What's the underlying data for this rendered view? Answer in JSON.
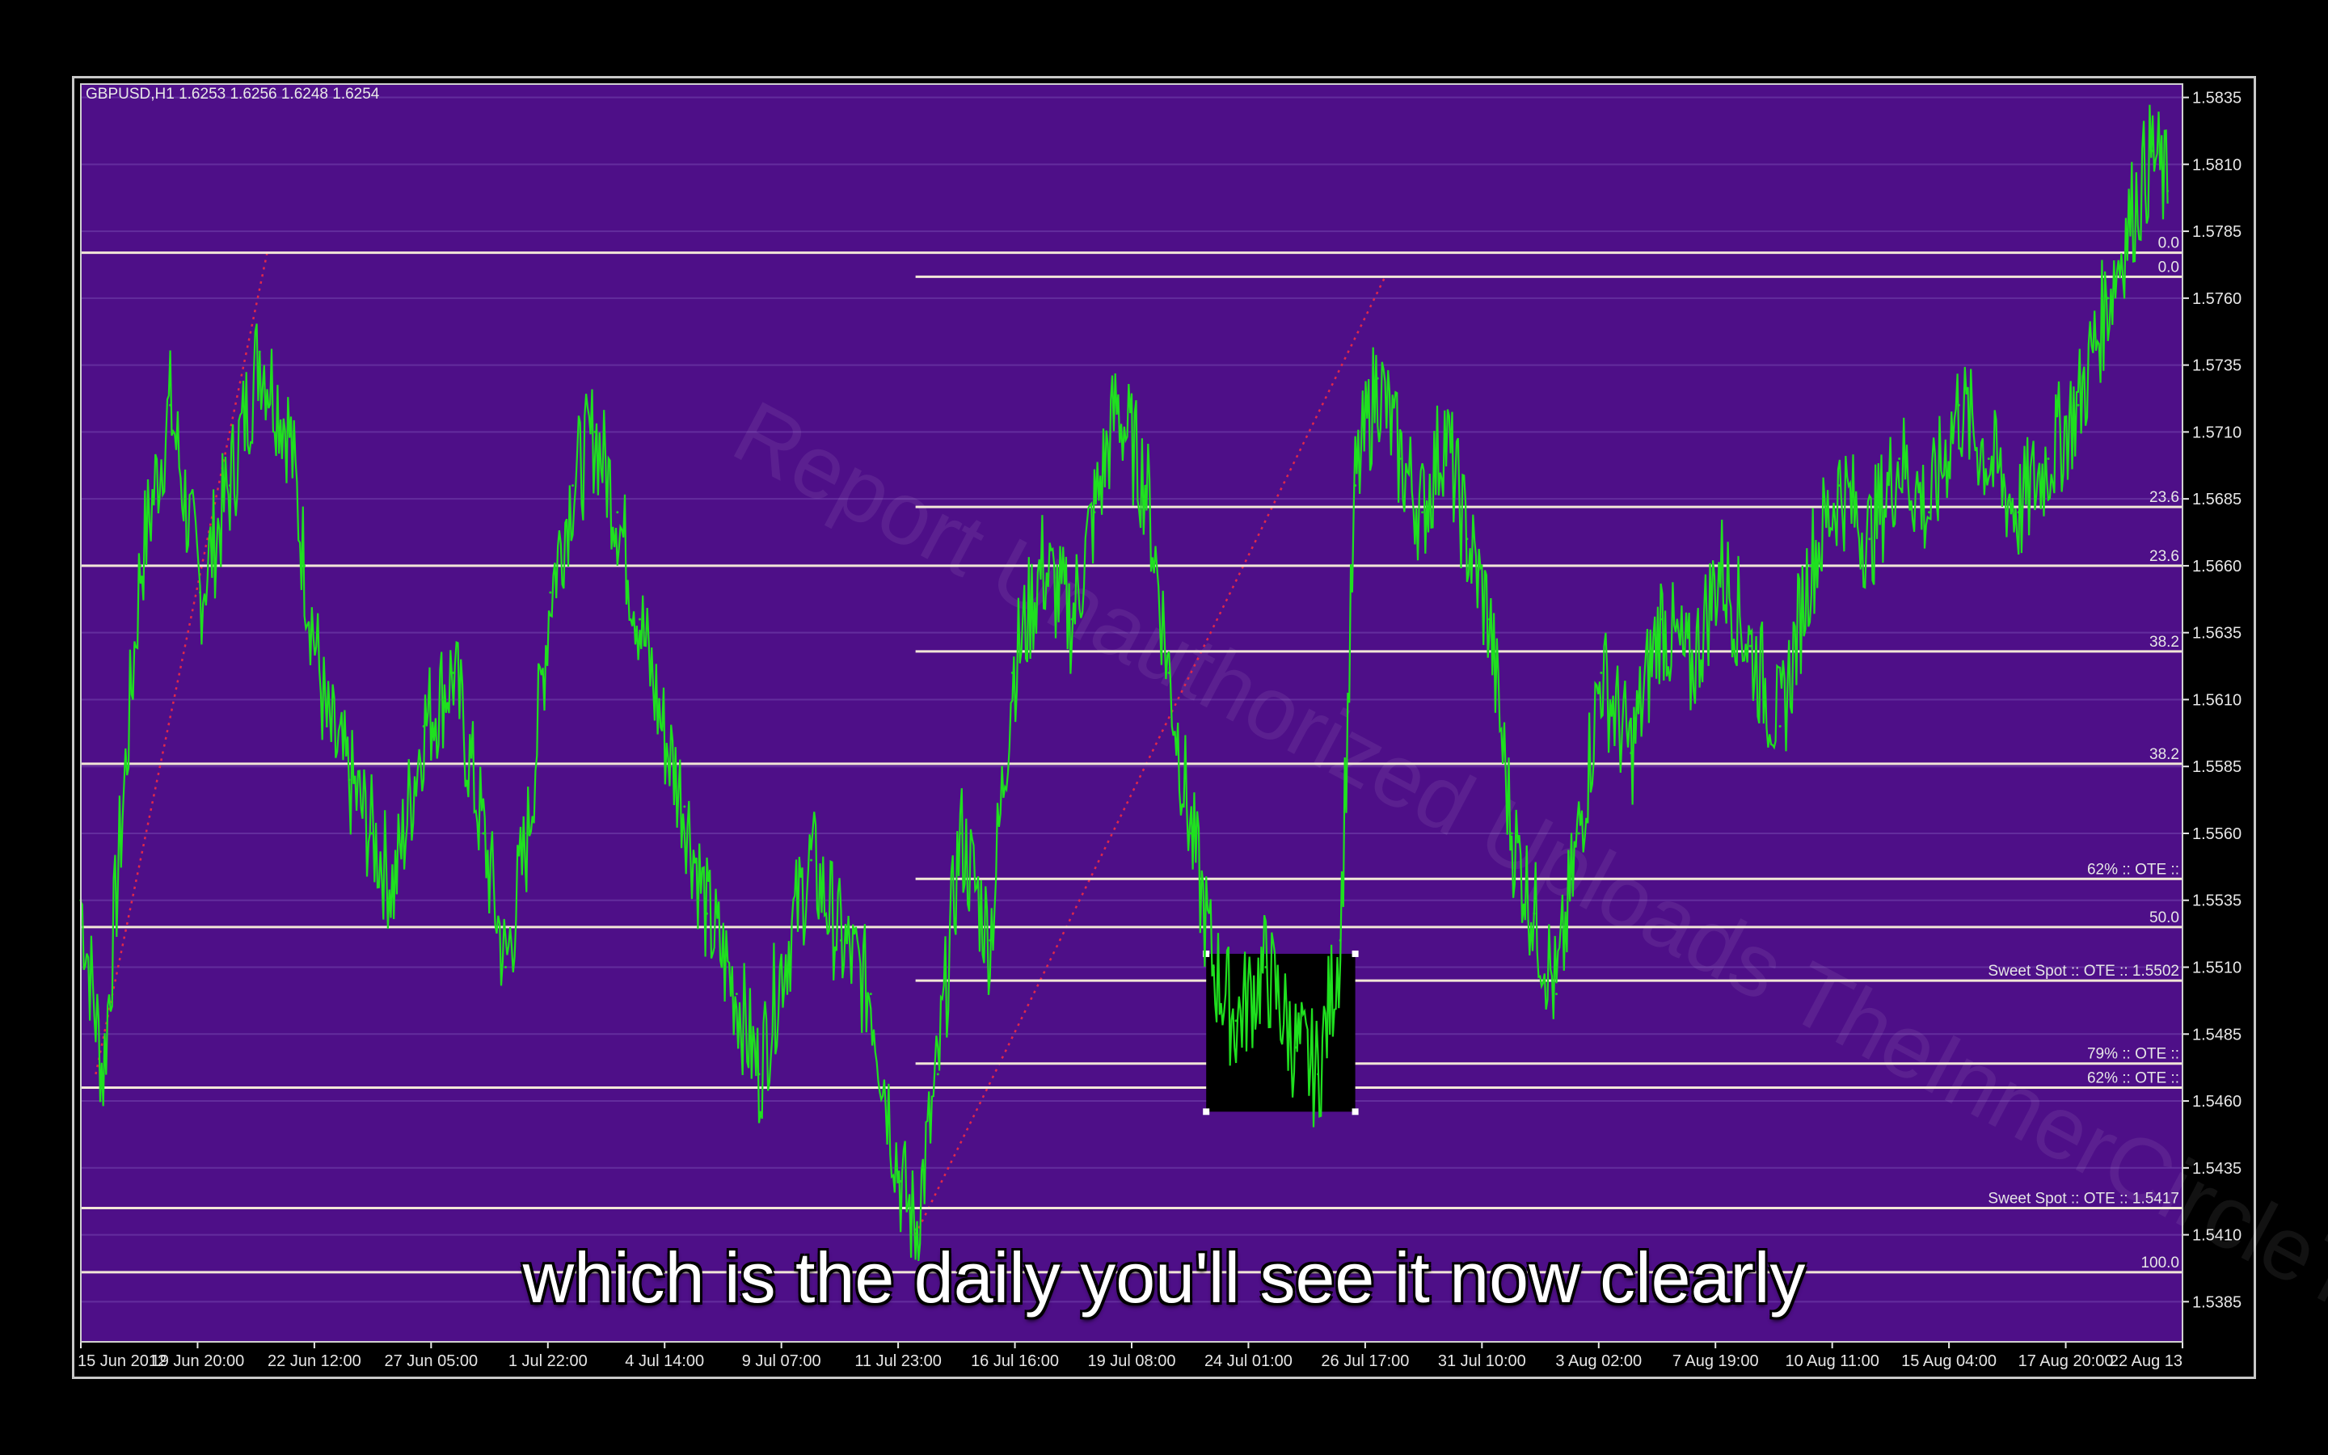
{
  "symbol_header": "GBPUSD,H1  1.6253 1.6256 1.6248 1.6254",
  "watermark": "Report Unauthorized Uploads TheInnerCircleTrader.com",
  "subtitle": "which is the daily you'll see it now clearly",
  "colors": {
    "background": "#4e0f88",
    "grid": "#6d3aa6",
    "price": "#1fe01f",
    "level_line": "#f2e6d8",
    "text": "#e6e6e6",
    "dotted_trend": "#e0284a",
    "box": "#000000"
  },
  "chart_data": {
    "type": "line",
    "title": "GBPUSD,H1  1.6253 1.6256 1.6248 1.6254",
    "xlabel": "",
    "ylabel": "",
    "ylim": [
      1.537,
      1.584
    ],
    "y_ticks": [
      "1.5835",
      "1.5810",
      "1.5785",
      "1.5760",
      "1.5735",
      "1.5710",
      "1.5685",
      "1.5660",
      "1.5635",
      "1.5610",
      "1.5585",
      "1.5560",
      "1.5535",
      "1.5510",
      "1.5485",
      "1.5460",
      "1.5435",
      "1.5410",
      "1.5385"
    ],
    "x_ticks": [
      "15 Jun 2012",
      "19 Jun 20:00",
      "22 Jun 12:00",
      "27 Jun 05:00",
      "1 Jul 22:00",
      "4 Jul 14:00",
      "9 Jul 07:00",
      "11 Jul 23:00",
      "16 Jul 16:00",
      "19 Jul 08:00",
      "24 Jul 01:00",
      "26 Jul 17:00",
      "31 Jul 10:00",
      "3 Aug 02:00",
      "7 Aug 19:00",
      "10 Aug 11:00",
      "15 Aug 04:00",
      "17 Aug 20:00",
      "22 Aug 13"
    ],
    "series": [
      {
        "values": [
          {
            "x": 0.0,
            "y": 1.5535
          },
          {
            "x": 0.3,
            "y": 1.547
          },
          {
            "x": 0.8,
            "y": 1.566
          },
          {
            "x": 1.2,
            "y": 1.572
          },
          {
            "x": 1.6,
            "y": 1.565
          },
          {
            "x": 2.0,
            "y": 1.569
          },
          {
            "x": 2.4,
            "y": 1.574
          },
          {
            "x": 2.8,
            "y": 1.571
          },
          {
            "x": 3.0,
            "y": 1.566
          },
          {
            "x": 3.3,
            "y": 1.56
          },
          {
            "x": 3.6,
            "y": 1.558
          },
          {
            "x": 3.9,
            "y": 1.556
          },
          {
            "x": 4.2,
            "y": 1.554
          },
          {
            "x": 4.6,
            "y": 1.56
          },
          {
            "x": 5.0,
            "y": 1.562
          },
          {
            "x": 5.4,
            "y": 1.556
          },
          {
            "x": 5.7,
            "y": 1.551
          },
          {
            "x": 6.0,
            "y": 1.556
          },
          {
            "x": 6.3,
            "y": 1.565
          },
          {
            "x": 6.6,
            "y": 1.569
          },
          {
            "x": 6.9,
            "y": 1.571
          },
          {
            "x": 7.2,
            "y": 1.568
          },
          {
            "x": 7.5,
            "y": 1.564
          },
          {
            "x": 7.8,
            "y": 1.56
          },
          {
            "x": 8.1,
            "y": 1.557
          },
          {
            "x": 8.4,
            "y": 1.553
          },
          {
            "x": 8.8,
            "y": 1.55
          },
          {
            "x": 9.1,
            "y": 1.547
          },
          {
            "x": 9.4,
            "y": 1.551
          },
          {
            "x": 9.8,
            "y": 1.555
          },
          {
            "x": 10.2,
            "y": 1.552
          },
          {
            "x": 10.6,
            "y": 1.55
          },
          {
            "x": 11.0,
            "y": 1.543
          },
          {
            "x": 11.2,
            "y": 1.5412
          },
          {
            "x": 11.5,
            "y": 1.547
          },
          {
            "x": 11.8,
            "y": 1.556
          },
          {
            "x": 12.2,
            "y": 1.552
          },
          {
            "x": 12.5,
            "y": 1.562
          },
          {
            "x": 12.9,
            "y": 1.566
          },
          {
            "x": 13.3,
            "y": 1.564
          },
          {
            "x": 13.6,
            "y": 1.568
          },
          {
            "x": 13.9,
            "y": 1.572
          },
          {
            "x": 14.3,
            "y": 1.569
          },
          {
            "x": 14.6,
            "y": 1.562
          },
          {
            "x": 14.9,
            "y": 1.556
          },
          {
            "x": 15.2,
            "y": 1.551
          },
          {
            "x": 15.5,
            "y": 1.549
          },
          {
            "x": 15.9,
            "y": 1.551
          },
          {
            "x": 16.3,
            "y": 1.548
          },
          {
            "x": 16.6,
            "y": 1.547
          },
          {
            "x": 16.9,
            "y": 1.552
          },
          {
            "x": 17.1,
            "y": 1.569
          },
          {
            "x": 17.4,
            "y": 1.573
          },
          {
            "x": 17.7,
            "y": 1.57
          },
          {
            "x": 18.0,
            "y": 1.568
          },
          {
            "x": 18.3,
            "y": 1.571
          },
          {
            "x": 18.6,
            "y": 1.567
          },
          {
            "x": 18.9,
            "y": 1.564
          },
          {
            "x": 19.2,
            "y": 1.556
          },
          {
            "x": 19.5,
            "y": 1.553
          },
          {
            "x": 19.8,
            "y": 1.55
          },
          {
            "x": 20.1,
            "y": 1.556
          },
          {
            "x": 20.4,
            "y": 1.562
          },
          {
            "x": 20.8,
            "y": 1.559
          },
          {
            "x": 21.2,
            "y": 1.564
          },
          {
            "x": 21.6,
            "y": 1.562
          },
          {
            "x": 22.0,
            "y": 1.566
          },
          {
            "x": 22.4,
            "y": 1.563
          },
          {
            "x": 22.8,
            "y": 1.56
          },
          {
            "x": 23.2,
            "y": 1.566
          },
          {
            "x": 23.6,
            "y": 1.569
          },
          {
            "x": 24.0,
            "y": 1.567
          },
          {
            "x": 24.4,
            "y": 1.57
          },
          {
            "x": 24.8,
            "y": 1.568
          },
          {
            "x": 25.2,
            "y": 1.572
          },
          {
            "x": 25.6,
            "y": 1.57
          },
          {
            "x": 26.0,
            "y": 1.568
          },
          {
            "x": 26.4,
            "y": 1.57
          },
          {
            "x": 26.8,
            "y": 1.572
          },
          {
            "x": 27.2,
            "y": 1.576
          },
          {
            "x": 27.5,
            "y": 1.579
          },
          {
            "x": 27.8,
            "y": 1.5815
          },
          {
            "x": 28.0,
            "y": 1.58
          }
        ]
      }
    ],
    "left_fib": {
      "levels": [
        {
          "label": "0.0",
          "price": 1.5777
        },
        {
          "label": "23.6",
          "price": 1.566
        },
        {
          "label": "38.2",
          "price": 1.5586
        },
        {
          "label": "50.0",
          "price": 1.5525
        },
        {
          "label": "62% :: OTE ::",
          "price": 1.5465
        },
        {
          "label": "Sweet Spot :: OTE ::  1.5417",
          "price": 1.542
        },
        {
          "label": "100.0",
          "price": 1.5396
        }
      ]
    },
    "right_fib": {
      "levels": [
        {
          "label": "0.0",
          "price": 1.5768
        },
        {
          "label": "23.6",
          "price": 1.5682
        },
        {
          "label": "38.2",
          "price": 1.5628
        },
        {
          "label": "62% :: OTE ::",
          "price": 1.5543
        },
        {
          "label": "Sweet Spot :: OTE ::  1.5502",
          "price": 1.5505
        },
        {
          "label": "79% :: OTE ::",
          "price": 1.5474
        }
      ]
    },
    "highlight_box": {
      "x_from": 15.1,
      "x_to": 17.1,
      "price_top": 1.5515,
      "price_bottom": 1.5456
    }
  }
}
